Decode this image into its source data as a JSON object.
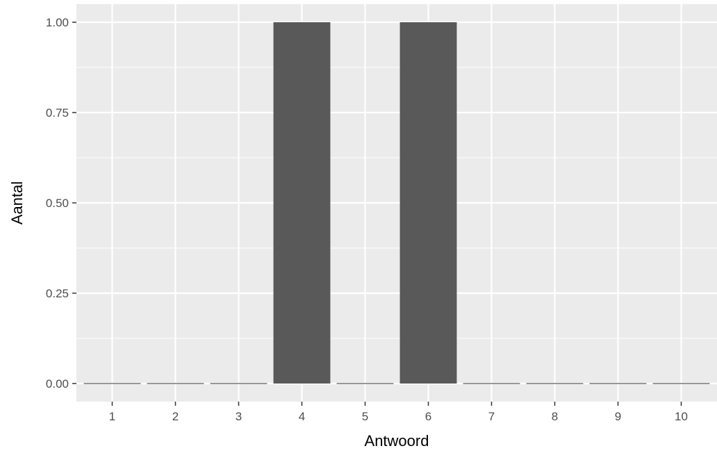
{
  "chart_data": {
    "type": "bar",
    "categories": [
      "1",
      "2",
      "3",
      "4",
      "5",
      "6",
      "7",
      "8",
      "9",
      "10"
    ],
    "values": [
      0,
      0,
      0,
      1,
      0,
      1,
      0,
      0,
      0,
      0
    ],
    "xlabel": "Antwoord",
    "ylabel": "Aantal",
    "ylim": [
      0,
      1
    ],
    "yticks": [
      "0.00",
      "0.25",
      "0.50",
      "0.75",
      "1.00"
    ],
    "grid": true,
    "legend": "none"
  },
  "colors": {
    "panel_background": "#ebebeb",
    "grid_line": "#ffffff",
    "bar_fill": "#595959",
    "tick_text": "#4d4d4d",
    "axis_title": "#000000"
  }
}
